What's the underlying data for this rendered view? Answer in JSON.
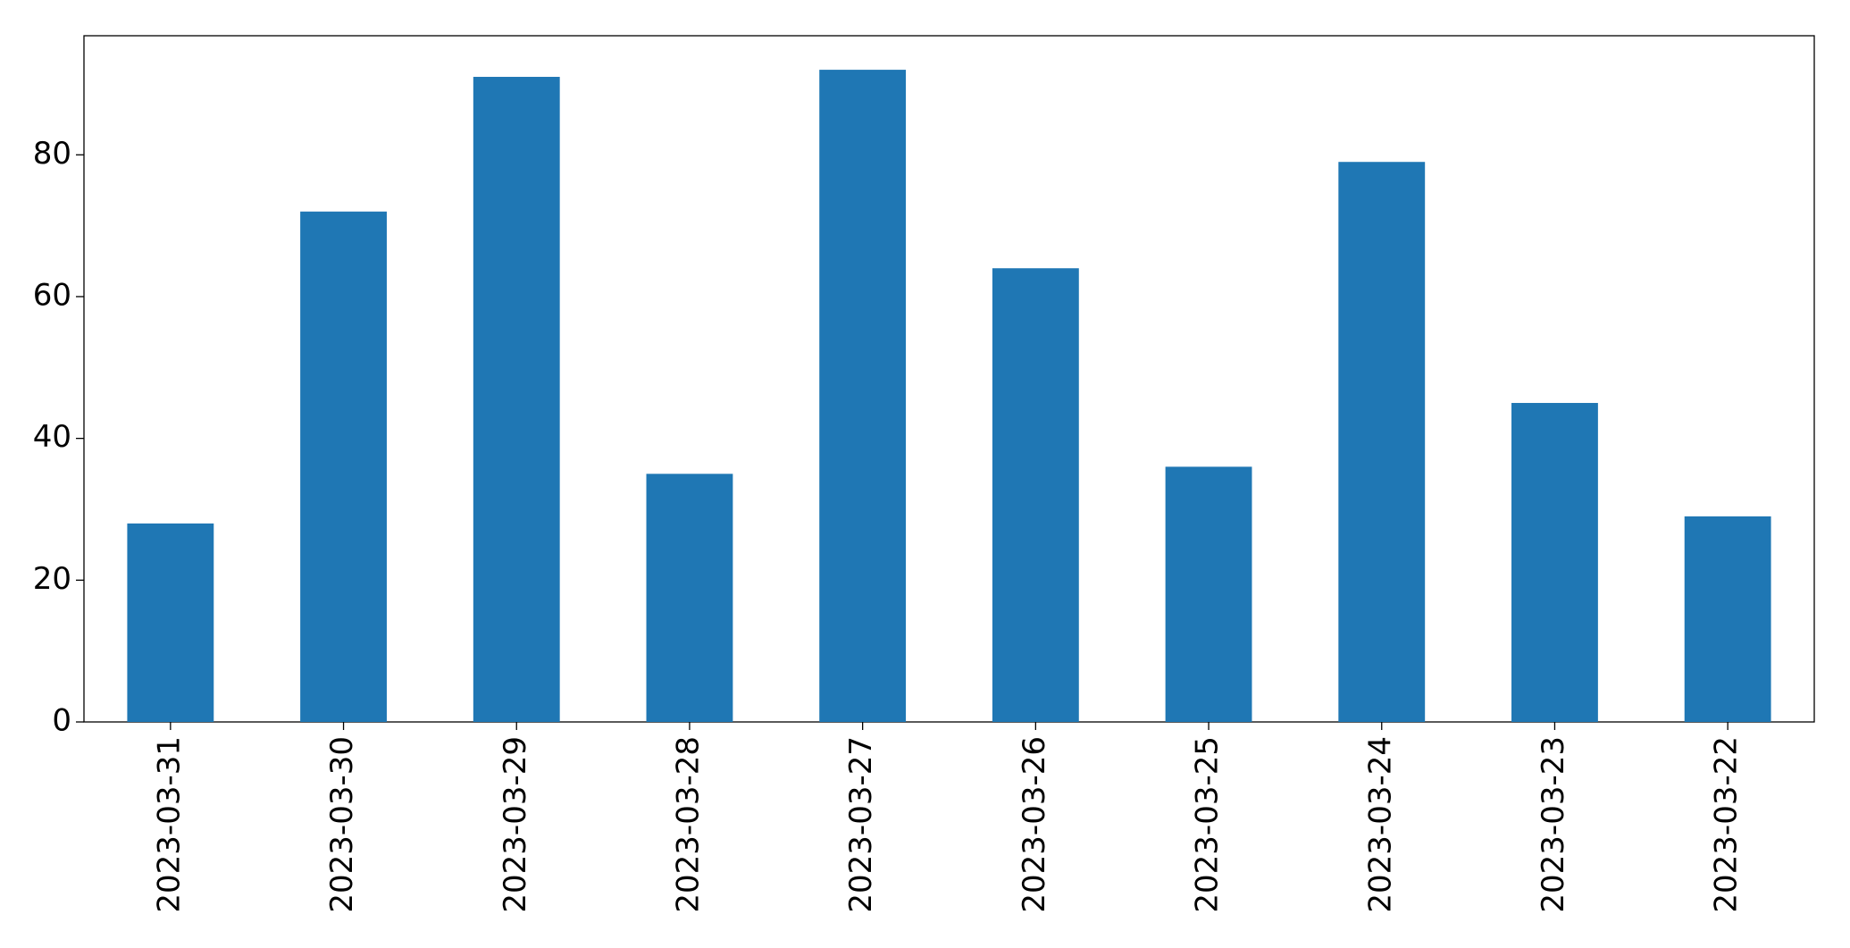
{
  "chart_data": {
    "type": "bar",
    "categories": [
      "2023-03-31",
      "2023-03-30",
      "2023-03-29",
      "2023-03-28",
      "2023-03-27",
      "2023-03-26",
      "2023-03-25",
      "2023-03-24",
      "2023-03-23",
      "2023-03-22"
    ],
    "values": [
      28,
      72,
      91,
      35,
      92,
      64,
      36,
      79,
      45,
      29
    ],
    "color": "#1f77b4",
    "ylim": [
      0,
      96.8
    ],
    "yticks": [
      0,
      20,
      40,
      60,
      80
    ],
    "grid": false
  }
}
